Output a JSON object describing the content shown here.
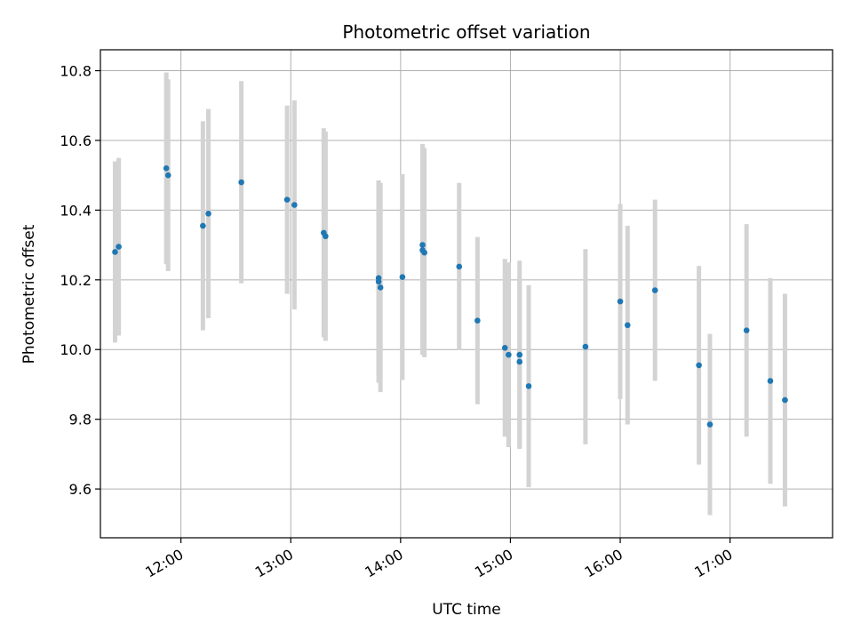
{
  "chart_data": {
    "type": "scatter",
    "title": "Photometric offset variation",
    "xlabel": "UTC time",
    "ylabel": "Photometric offset",
    "grid": true,
    "x_unit": "UTC time (HH:MM)",
    "xlim": [
      "11:16",
      "17:56"
    ],
    "ylim": [
      9.46,
      10.86
    ],
    "xticks": [
      "12:00",
      "13:00",
      "14:00",
      "15:00",
      "16:00",
      "17:00"
    ],
    "yticks": [
      9.6,
      9.8,
      10.0,
      10.2,
      10.4,
      10.6,
      10.8
    ],
    "ytick_labels": [
      "9.6",
      "9.8",
      "10.0",
      "10.2",
      "10.4",
      "10.6",
      "10.8"
    ],
    "colors": {
      "point": "#1f77b4",
      "errorbar": "#d3d3d3",
      "grid": "#b0b0b0"
    },
    "series": [
      {
        "points": [
          {
            "x": "11:24",
            "y": 10.28,
            "yerr": 0.26
          },
          {
            "x": "11:26",
            "y": 10.295,
            "yerr": 0.255
          },
          {
            "x": "11:52",
            "y": 10.52,
            "yerr": 0.275
          },
          {
            "x": "11:53",
            "y": 10.5,
            "yerr": 0.275
          },
          {
            "x": "12:12",
            "y": 10.355,
            "yerr": 0.3
          },
          {
            "x": "12:15",
            "y": 10.39,
            "yerr": 0.3
          },
          {
            "x": "12:33",
            "y": 10.48,
            "yerr": 0.29
          },
          {
            "x": "12:58",
            "y": 10.43,
            "yerr": 0.27
          },
          {
            "x": "13:02",
            "y": 10.415,
            "yerr": 0.3
          },
          {
            "x": "13:18",
            "y": 10.335,
            "yerr": 0.3
          },
          {
            "x": "13:19",
            "y": 10.325,
            "yerr": 0.3
          },
          {
            "x": "13:48",
            "y": 10.205,
            "yerr": 0.28
          },
          {
            "x": "13:48",
            "y": 10.195,
            "yerr": 0.29
          },
          {
            "x": "13:49",
            "y": 10.178,
            "yerr": 0.3
          },
          {
            "x": "14:01",
            "y": 10.208,
            "yerr": 0.295
          },
          {
            "x": "14:12",
            "y": 10.3,
            "yerr": 0.29
          },
          {
            "x": "14:12",
            "y": 10.285,
            "yerr": 0.3
          },
          {
            "x": "14:13",
            "y": 10.278,
            "yerr": 0.3
          },
          {
            "x": "14:32",
            "y": 10.238,
            "yerr": 0.24
          },
          {
            "x": "14:42",
            "y": 10.083,
            "yerr": 0.24
          },
          {
            "x": "14:57",
            "y": 10.005,
            "yerr": 0.255
          },
          {
            "x": "14:59",
            "y": 9.985,
            "yerr": 0.265
          },
          {
            "x": "15:05",
            "y": 9.985,
            "yerr": 0.27
          },
          {
            "x": "15:05",
            "y": 9.965,
            "yerr": 0.245
          },
          {
            "x": "15:10",
            "y": 9.895,
            "yerr": 0.29
          },
          {
            "x": "15:41",
            "y": 10.008,
            "yerr": 0.28
          },
          {
            "x": "16:00",
            "y": 10.138,
            "yerr": 0.28
          },
          {
            "x": "16:04",
            "y": 10.07,
            "yerr": 0.285
          },
          {
            "x": "16:19",
            "y": 10.17,
            "yerr": 0.26
          },
          {
            "x": "16:43",
            "y": 9.955,
            "yerr": 0.285
          },
          {
            "x": "16:49",
            "y": 9.785,
            "yerr": 0.26
          },
          {
            "x": "17:09",
            "y": 10.055,
            "yerr": 0.305
          },
          {
            "x": "17:22",
            "y": 9.91,
            "yerr": 0.295
          },
          {
            "x": "17:30",
            "y": 9.855,
            "yerr": 0.305
          }
        ]
      }
    ]
  }
}
